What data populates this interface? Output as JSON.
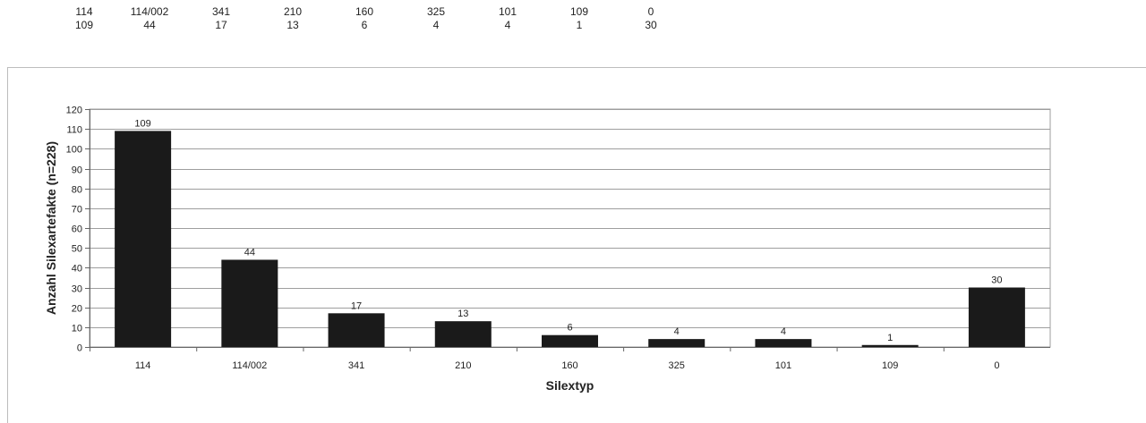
{
  "table": {
    "header": [
      "114",
      "114/002",
      "341",
      "210",
      "160",
      "325",
      "101",
      "109",
      "0"
    ],
    "values": [
      "109",
      "44",
      "17",
      "13",
      "6",
      "4",
      "4",
      "1",
      "30"
    ]
  },
  "chart_data": {
    "type": "bar",
    "categories": [
      "114",
      "114/002",
      "341",
      "210",
      "160",
      "325",
      "101",
      "109",
      "0"
    ],
    "values": [
      109,
      44,
      17,
      13,
      6,
      4,
      4,
      1,
      30
    ],
    "title": "",
    "xlabel": "Silextyp",
    "ylabel": "Anzahl Silexartefakte (n=228)",
    "ylim": [
      0,
      120
    ],
    "yticks": [
      0,
      10,
      20,
      30,
      40,
      50,
      60,
      70,
      80,
      90,
      100,
      110,
      120
    ],
    "grid": true,
    "legend": "none",
    "bar_color": "#1a1a1a",
    "gridline_color": "#9e9e9e"
  }
}
